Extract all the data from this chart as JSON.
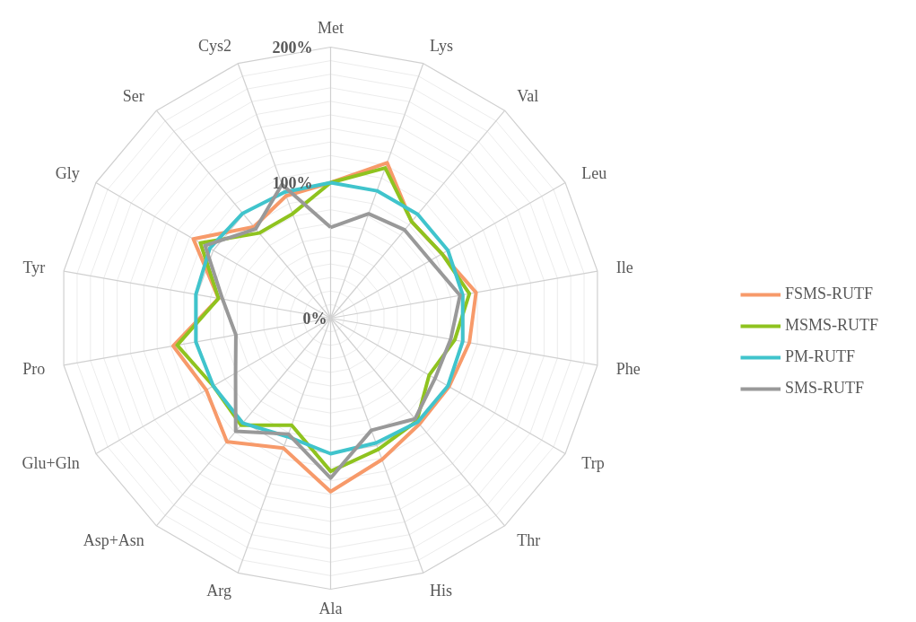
{
  "chart_data": {
    "type": "radar",
    "categories": [
      "Met",
      "Lys",
      "Val",
      "Leu",
      "Ile",
      "Phe",
      "Trp",
      "Thr",
      "His",
      "Ala",
      "Arg",
      "Asp+Asn",
      "Glu+Gln",
      "Pro",
      "Tyr",
      "Gly",
      "Ser",
      "Cys2"
    ],
    "series": [
      {
        "name": "FSMS-RUTF",
        "color": "#f79a6a",
        "values": [
          100,
          122,
          93,
          95,
          109,
          104,
          101,
          102,
          111,
          128,
          102,
          119,
          106,
          118,
          84,
          117,
          88,
          96
        ]
      },
      {
        "name": "MSMS-RUTF",
        "color": "#8fc31f",
        "values": [
          100,
          118,
          93,
          95,
          104,
          93,
          84,
          99,
          103,
          113,
          84,
          103,
          100,
          115,
          84,
          111,
          82,
          82
        ]
      },
      {
        "name": "PM-RUTF",
        "color": "#40c4cc",
        "values": [
          100,
          100,
          100,
          100,
          99,
          99,
          100,
          100,
          98,
          100,
          93,
          101,
          100,
          101,
          101,
          103,
          101,
          99
        ]
      },
      {
        "name": "SMS-RUTF",
        "color": "#999999",
        "values": [
          67,
          82,
          85,
          85,
          97,
          90,
          89,
          97,
          88,
          118,
          91,
          109,
          81,
          71,
          81,
          107,
          86,
          105
        ]
      }
    ],
    "ylim": [
      0,
      200
    ],
    "yticks": [
      {
        "value": 0,
        "label": "0%"
      },
      {
        "value": 100,
        "label": "100%"
      },
      {
        "value": 200,
        "label": "200%"
      }
    ],
    "grid": true,
    "legend": "right",
    "line_style": "solid",
    "marker": "none"
  }
}
